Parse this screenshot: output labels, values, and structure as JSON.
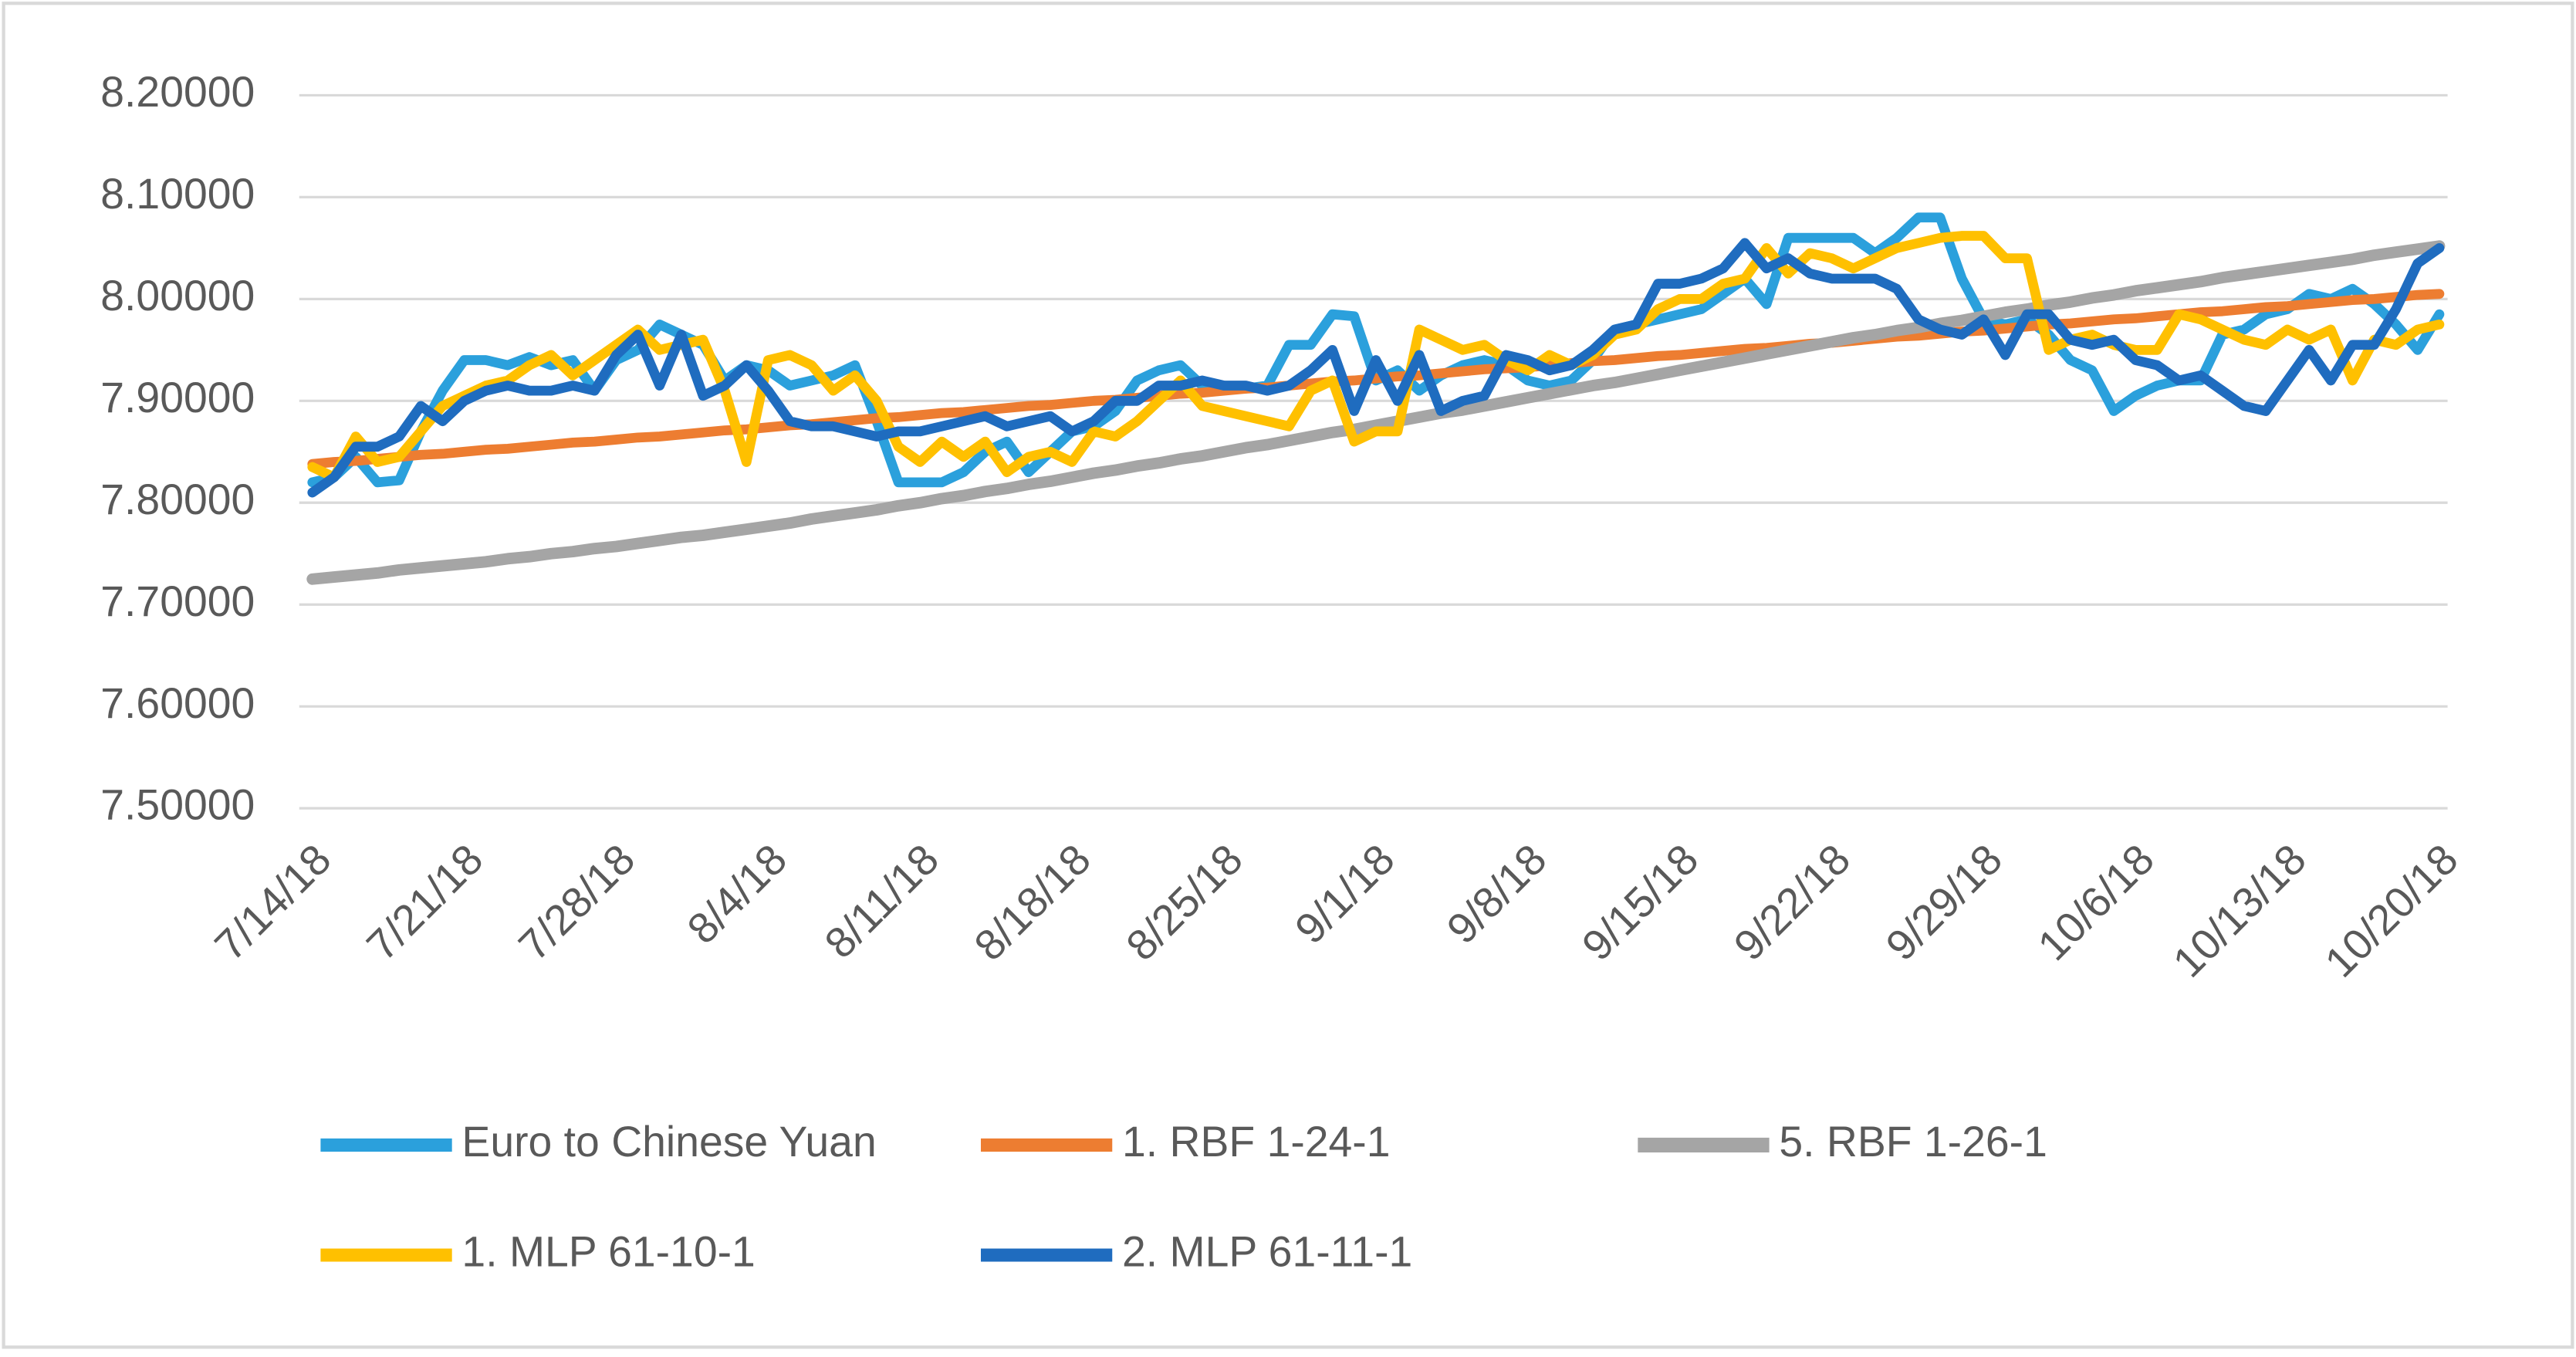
{
  "chart_data": {
    "type": "line",
    "categories": [
      "7/14/18",
      null,
      null,
      null,
      null,
      null,
      null,
      "7/21/18",
      null,
      null,
      null,
      null,
      null,
      null,
      "7/28/18",
      null,
      null,
      null,
      null,
      null,
      null,
      "8/4/18",
      null,
      null,
      null,
      null,
      null,
      null,
      "8/11/18",
      null,
      null,
      null,
      null,
      null,
      null,
      "8/18/18",
      null,
      null,
      null,
      null,
      null,
      null,
      "8/25/18",
      null,
      null,
      null,
      null,
      null,
      null,
      "9/1/18",
      null,
      null,
      null,
      null,
      null,
      null,
      "9/8/18",
      null,
      null,
      null,
      null,
      null,
      null,
      "9/15/18",
      null,
      null,
      null,
      null,
      null,
      null,
      "9/22/18",
      null,
      null,
      null,
      null,
      null,
      null,
      "9/29/18",
      null,
      null,
      null,
      null,
      null,
      null,
      "10/6/18",
      null,
      null,
      null,
      null,
      null,
      null,
      "10/13/18",
      null,
      null,
      null,
      null,
      null,
      null,
      "10/20/18"
    ],
    "series": [
      {
        "name": "Euro to Chinese Yuan",
        "color": "#2ba0dc",
        "width": 6,
        "values": [
          7.82,
          7.825,
          7.845,
          7.82,
          7.822,
          7.87,
          7.91,
          7.94,
          7.94,
          7.935,
          7.943,
          7.935,
          7.94,
          7.91,
          7.94,
          7.95,
          7.975,
          7.965,
          7.955,
          7.92,
          7.935,
          7.93,
          7.915,
          7.92,
          7.925,
          7.935,
          7.88,
          7.82,
          7.82,
          7.82,
          7.83,
          7.85,
          7.86,
          7.83,
          7.85,
          7.87,
          7.875,
          7.89,
          7.92,
          7.93,
          7.935,
          7.915,
          7.915,
          7.912,
          7.915,
          7.955,
          7.955,
          7.985,
          7.983,
          7.92,
          7.93,
          7.91,
          7.925,
          7.935,
          7.94,
          7.935,
          7.92,
          7.915,
          7.92,
          7.94,
          7.97,
          7.975,
          7.98,
          7.985,
          7.99,
          8.005,
          8.02,
          7.995,
          8.06,
          8.06,
          8.06,
          8.06,
          8.045,
          8.06,
          8.08,
          8.08,
          8.02,
          7.98,
          7.975,
          7.98,
          7.965,
          7.94,
          7.93,
          7.89,
          7.905,
          7.915,
          7.92,
          7.92,
          7.965,
          7.97,
          7.985,
          7.99,
          8.005,
          8.0,
          8.01,
          7.995,
          7.975,
          7.95,
          7.985
        ]
      },
      {
        "name": "1. RBF 1-24-1",
        "color": "#ed7d31",
        "width": 6,
        "values": [
          7.838,
          7.84,
          7.841,
          7.843,
          7.845,
          7.847,
          7.848,
          7.85,
          7.852,
          7.853,
          7.855,
          7.857,
          7.859,
          7.86,
          7.862,
          7.864,
          7.865,
          7.867,
          7.869,
          7.871,
          7.872,
          7.874,
          7.876,
          7.877,
          7.879,
          7.881,
          7.883,
          7.884,
          7.886,
          7.888,
          7.889,
          7.891,
          7.893,
          7.895,
          7.896,
          7.898,
          7.9,
          7.901,
          7.903,
          7.905,
          7.907,
          7.908,
          7.91,
          7.912,
          7.913,
          7.915,
          7.917,
          7.919,
          7.92,
          7.922,
          7.924,
          7.925,
          7.927,
          7.929,
          7.931,
          7.932,
          7.933,
          7.935,
          7.937,
          7.939,
          7.94,
          7.942,
          7.944,
          7.945,
          7.947,
          7.949,
          7.951,
          7.952,
          7.954,
          7.956,
          7.957,
          7.959,
          7.961,
          7.963,
          7.964,
          7.966,
          7.968,
          7.969,
          7.971,
          7.973,
          7.975,
          7.976,
          7.978,
          7.98,
          7.981,
          7.983,
          7.985,
          7.987,
          7.988,
          7.99,
          7.992,
          7.993,
          7.995,
          7.997,
          7.999,
          8.0,
          8.002,
          8.004,
          8.005
        ]
      },
      {
        "name": "5. RBF 1-26-1",
        "color": "#a5a5a5",
        "width": 7,
        "values": [
          7.725,
          7.727,
          7.729,
          7.731,
          7.734,
          7.736,
          7.738,
          7.74,
          7.742,
          7.745,
          7.747,
          7.75,
          7.752,
          7.755,
          7.757,
          7.76,
          7.763,
          7.766,
          7.768,
          7.771,
          7.774,
          7.777,
          7.78,
          7.784,
          7.787,
          7.79,
          7.793,
          7.797,
          7.8,
          7.804,
          7.807,
          7.811,
          7.814,
          7.818,
          7.821,
          7.825,
          7.829,
          7.832,
          7.836,
          7.839,
          7.843,
          7.846,
          7.85,
          7.854,
          7.857,
          7.861,
          7.865,
          7.869,
          7.872,
          7.876,
          7.88,
          7.884,
          7.888,
          7.891,
          7.895,
          7.899,
          7.903,
          7.907,
          7.911,
          7.915,
          7.918,
          7.922,
          7.926,
          7.93,
          7.934,
          7.938,
          7.942,
          7.946,
          7.95,
          7.954,
          7.958,
          7.962,
          7.965,
          7.969,
          7.972,
          7.976,
          7.979,
          7.983,
          7.987,
          7.99,
          7.994,
          7.997,
          8.001,
          8.004,
          8.008,
          8.011,
          8.014,
          8.017,
          8.021,
          8.024,
          8.027,
          8.03,
          8.033,
          8.036,
          8.039,
          8.043,
          8.046,
          8.049,
          8.052
        ]
      },
      {
        "name": "1. MLP 61-10-1",
        "color": "#ffc000",
        "width": 6,
        "values": [
          7.835,
          7.825,
          7.865,
          7.84,
          7.845,
          7.87,
          7.895,
          7.905,
          7.915,
          7.92,
          7.935,
          7.945,
          7.925,
          7.94,
          7.955,
          7.97,
          7.95,
          7.955,
          7.96,
          7.91,
          7.84,
          7.94,
          7.945,
          7.935,
          7.91,
          7.925,
          7.9,
          7.855,
          7.84,
          7.86,
          7.845,
          7.86,
          7.83,
          7.845,
          7.85,
          7.84,
          7.87,
          7.865,
          7.88,
          7.9,
          7.92,
          7.895,
          7.89,
          7.885,
          7.88,
          7.875,
          7.91,
          7.92,
          7.86,
          7.87,
          7.87,
          7.97,
          7.96,
          7.95,
          7.955,
          7.94,
          7.93,
          7.945,
          7.935,
          7.945,
          7.965,
          7.97,
          7.99,
          8.0,
          8.0,
          8.015,
          8.02,
          8.05,
          8.025,
          8.045,
          8.04,
          8.03,
          8.04,
          8.05,
          8.055,
          8.06,
          8.062,
          8.062,
          8.04,
          8.04,
          7.95,
          7.96,
          7.965,
          7.955,
          7.95,
          7.95,
          7.985,
          7.98,
          7.97,
          7.96,
          7.955,
          7.97,
          7.96,
          7.97,
          7.92,
          7.96,
          7.955,
          7.97,
          7.975
        ]
      },
      {
        "name": "2. MLP 61-11-1",
        "color": "#1f6cbf",
        "width": 6,
        "values": [
          7.81,
          7.825,
          7.855,
          7.855,
          7.865,
          7.895,
          7.88,
          7.9,
          7.91,
          7.915,
          7.91,
          7.91,
          7.915,
          7.91,
          7.945,
          7.965,
          7.915,
          7.965,
          7.905,
          7.915,
          7.935,
          7.91,
          7.88,
          7.875,
          7.875,
          7.87,
          7.865,
          7.87,
          7.87,
          7.875,
          7.88,
          7.885,
          7.875,
          7.88,
          7.885,
          7.87,
          7.88,
          7.9,
          7.9,
          7.915,
          7.915,
          7.92,
          7.915,
          7.915,
          7.91,
          7.915,
          7.93,
          7.95,
          7.89,
          7.94,
          7.9,
          7.945,
          7.89,
          7.9,
          7.905,
          7.945,
          7.94,
          7.93,
          7.935,
          7.95,
          7.97,
          7.975,
          8.015,
          8.015,
          8.02,
          8.03,
          8.055,
          8.03,
          8.04,
          8.025,
          8.02,
          8.02,
          8.02,
          8.01,
          7.98,
          7.97,
          7.965,
          7.98,
          7.945,
          7.985,
          7.985,
          7.96,
          7.955,
          7.96,
          7.94,
          7.935,
          7.92,
          7.925,
          7.91,
          7.895,
          7.89,
          7.92,
          7.95,
          7.92,
          7.955,
          7.955,
          7.99,
          8.035,
          8.05
        ]
      }
    ],
    "ylim": [
      7.5,
      8.2
    ],
    "yticks": [
      {
        "value": 7.5,
        "label": "7.50000"
      },
      {
        "value": 7.6,
        "label": "7.60000"
      },
      {
        "value": 7.7,
        "label": "7.70000"
      },
      {
        "value": 7.8,
        "label": "7.80000"
      },
      {
        "value": 7.9,
        "label": "7.90000"
      },
      {
        "value": 8.0,
        "label": "8.00000"
      },
      {
        "value": 8.1,
        "label": "8.10000"
      },
      {
        "value": 8.2,
        "label": "8.20000"
      }
    ],
    "grid": true,
    "legend": "bottom"
  }
}
